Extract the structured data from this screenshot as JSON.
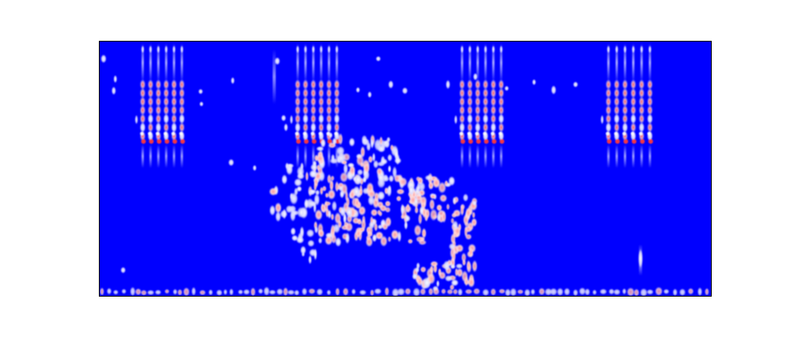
{
  "image": {
    "kind": "spectrogram-heatmap",
    "colormap": {
      "low": "#0000ff",
      "mid": "#ffffff",
      "high": "#ff4a4a"
    },
    "frame_color": "#000000",
    "background": "#ffffff",
    "axes_visible": false,
    "tick_labels": [],
    "title": "",
    "xlabel": "",
    "ylabel": ""
  }
}
